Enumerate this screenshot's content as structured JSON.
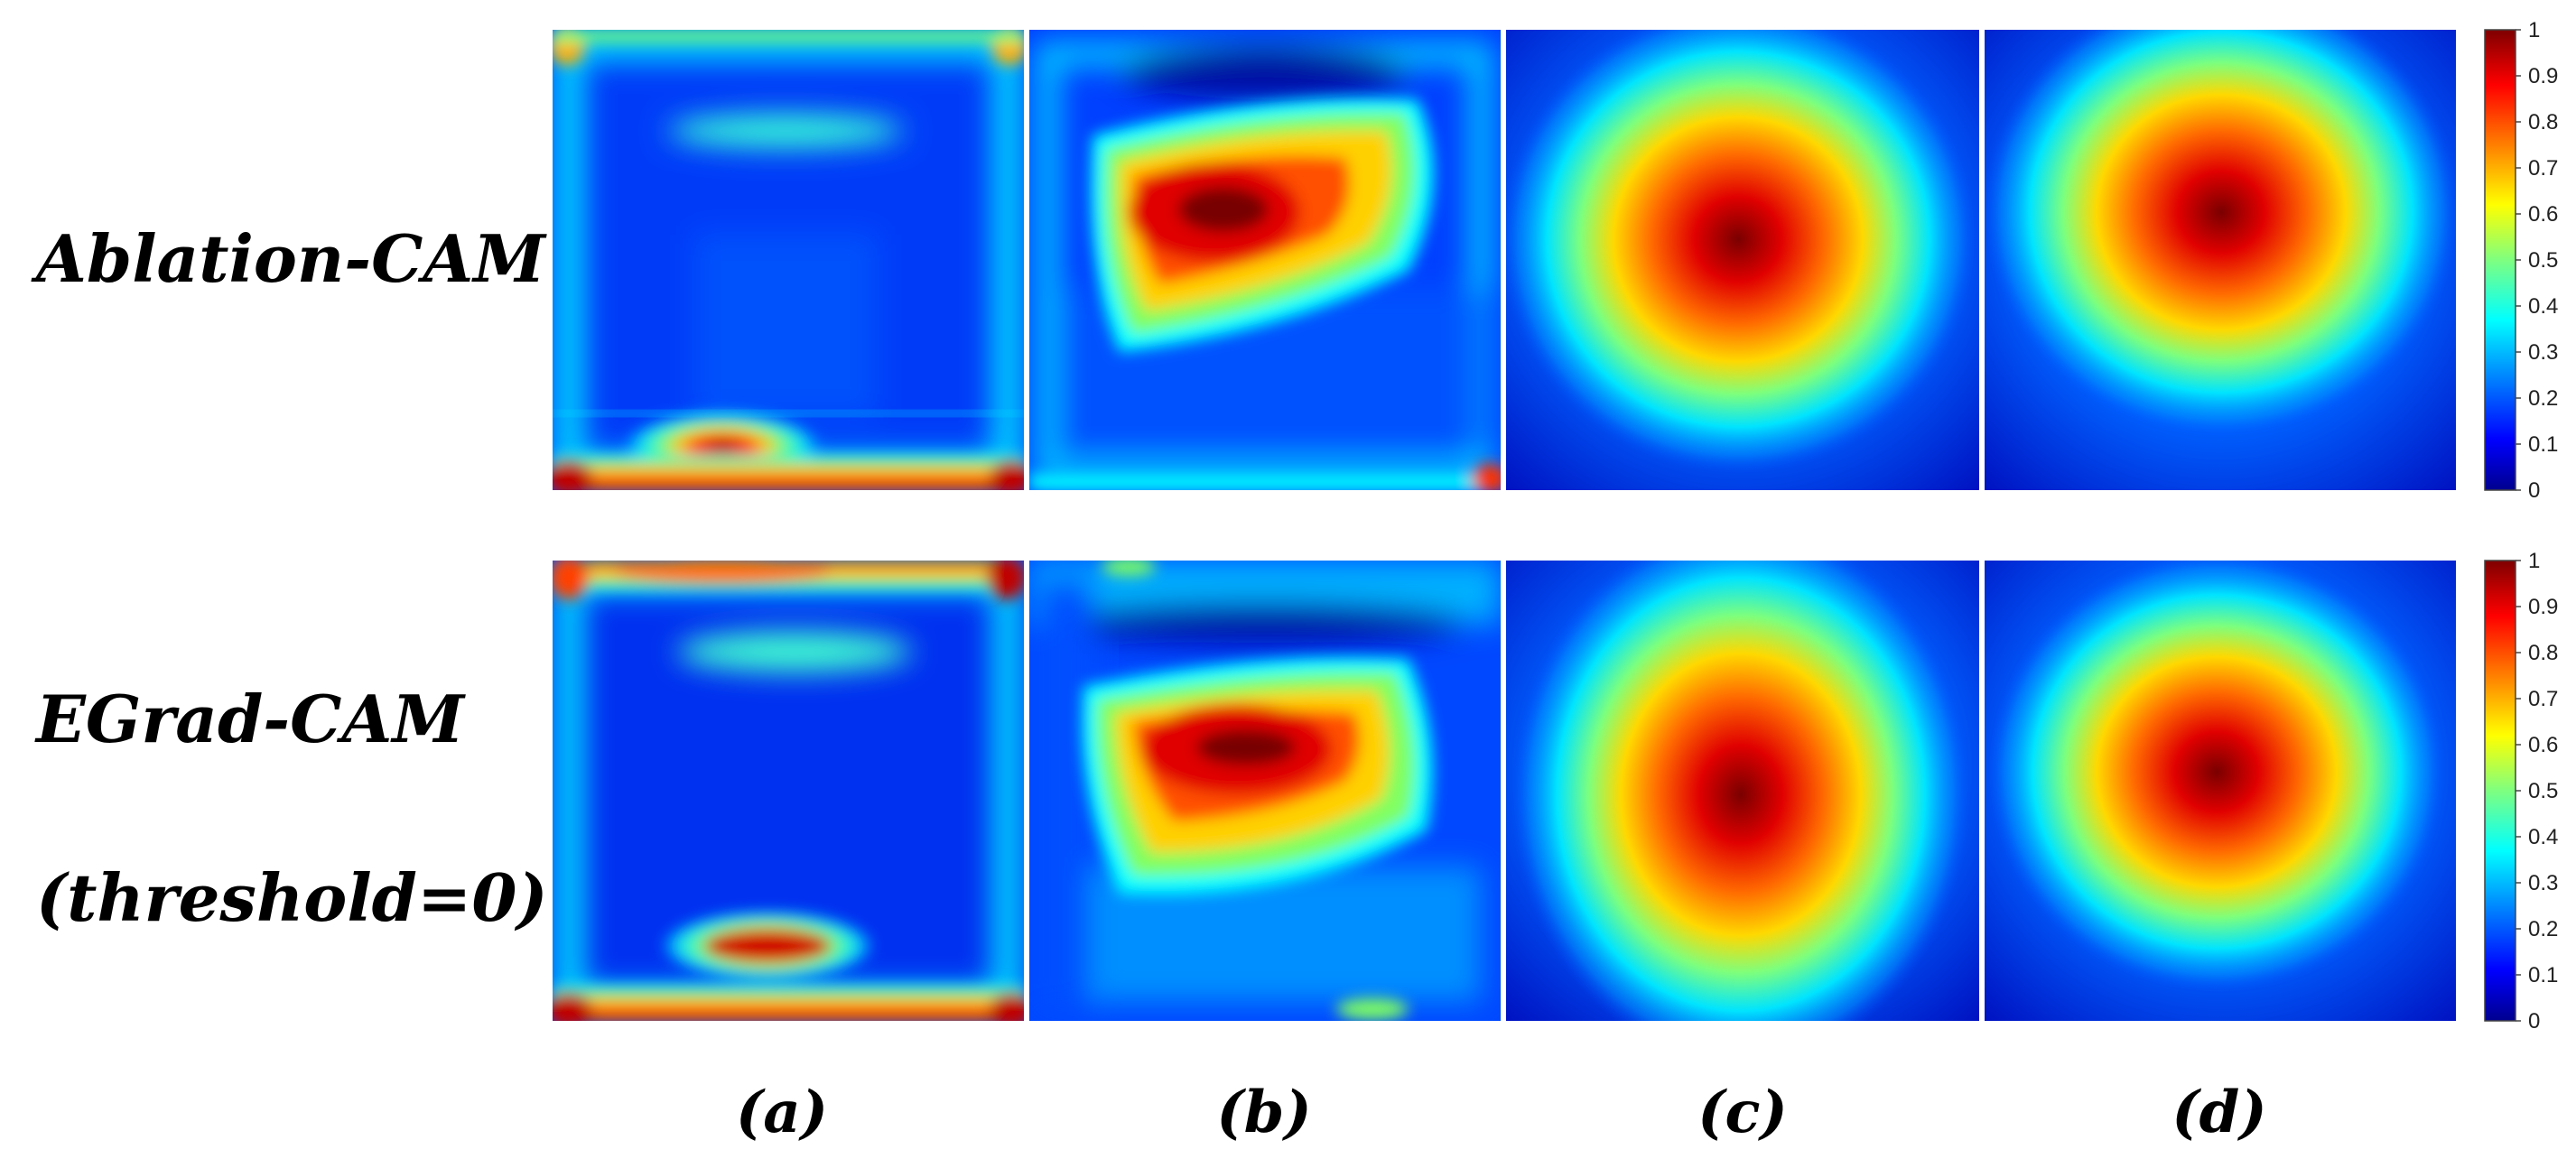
{
  "rows": [
    {
      "label": "Ablation-CAM",
      "sublabel": ""
    },
    {
      "label": "EGrad-CAM",
      "sublabel": "(threshold=0)"
    }
  ],
  "columns": [
    "(a)",
    "(b)",
    "(c)",
    "(d)"
  ],
  "colorbar": {
    "colormap": "jet",
    "ticks": [
      "0",
      "0.1",
      "0.2",
      "0.3",
      "0.4",
      "0.5",
      "0.6",
      "0.7",
      "0.8",
      "0.9",
      "1"
    ],
    "stops": [
      "#00008f",
      "#0000ff",
      "#007fff",
      "#00ffff",
      "#7fff7f",
      "#ffff00",
      "#ff7f00",
      "#ff0000",
      "#7f0000"
    ]
  }
}
